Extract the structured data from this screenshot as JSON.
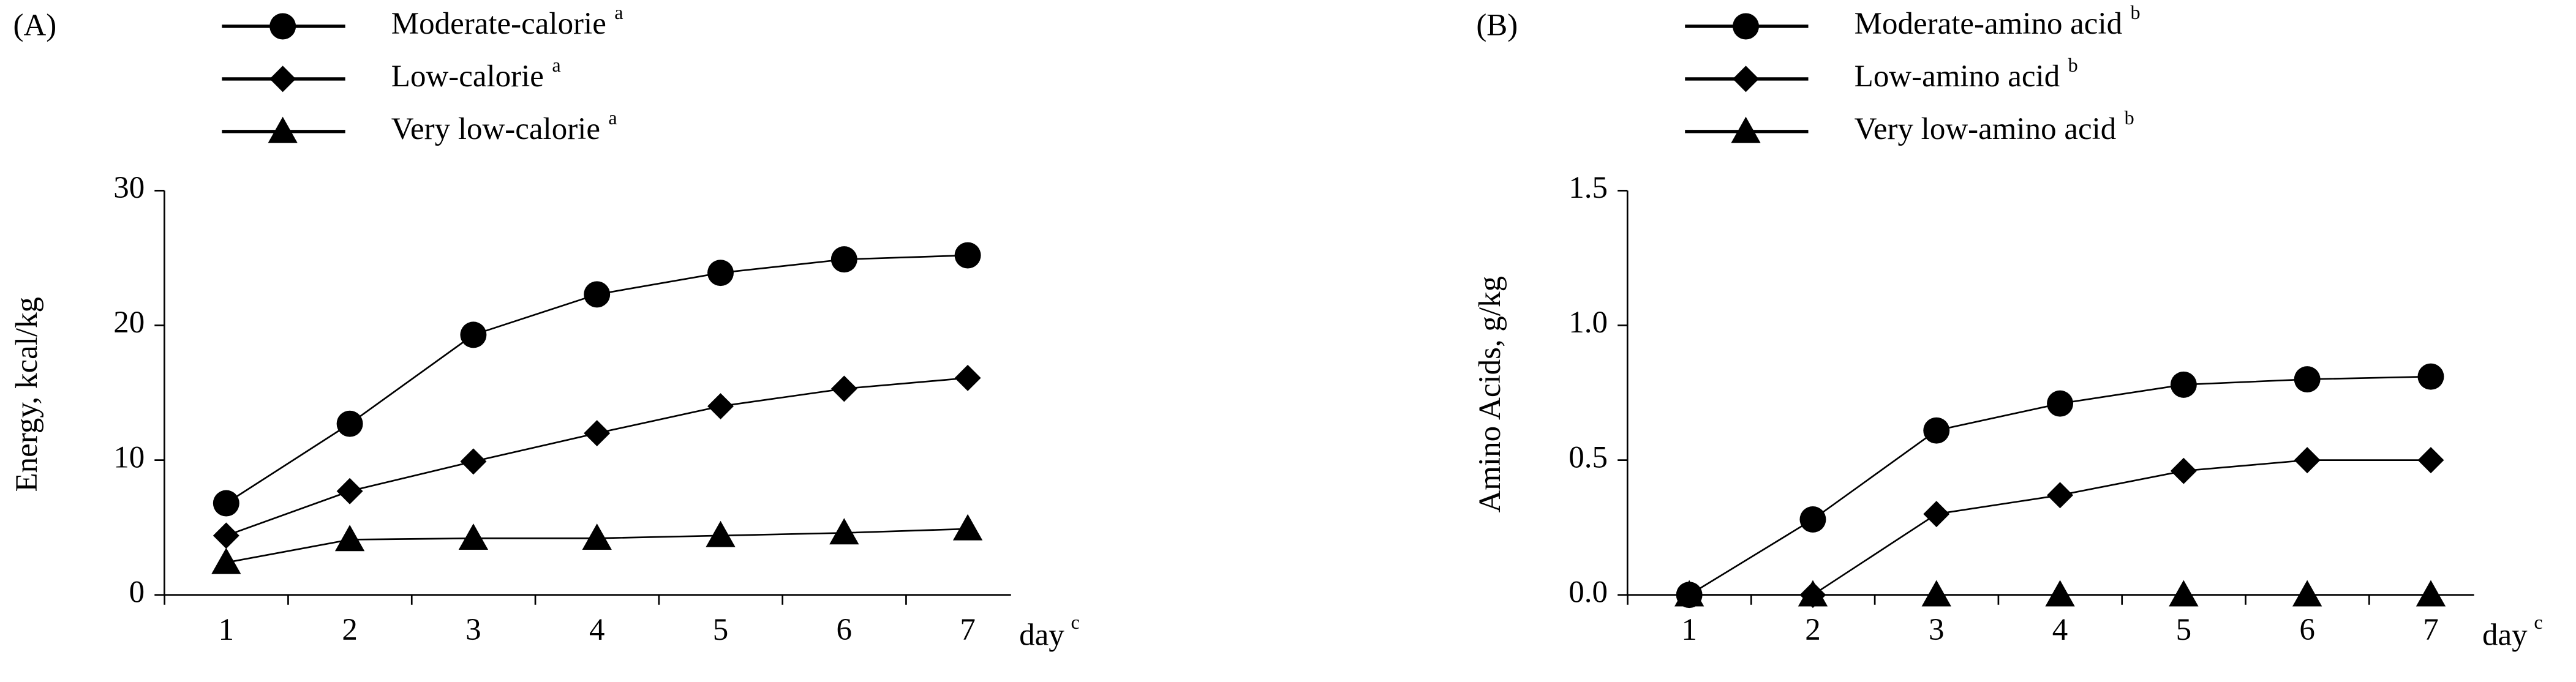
{
  "chart_data": [
    {
      "type": "line",
      "panel_label": "(A)",
      "ylabel": "Energy, kcal/kg",
      "xlabel": "day",
      "xlabel_note": "c",
      "x": [
        1,
        2,
        3,
        4,
        5,
        6,
        7
      ],
      "xlim": [
        0.5,
        7.35
      ],
      "ylim": [
        0,
        30
      ],
      "yticks": [
        0,
        10,
        20,
        30
      ],
      "series": [
        {
          "name": "Moderate-calorie",
          "note": "a",
          "color": "#000000",
          "marker": "circle",
          "values": [
            6.8,
            12.7,
            19.3,
            22.3,
            23.9,
            24.9,
            25.2
          ]
        },
        {
          "name": "Low-calorie",
          "note": "a",
          "color": "#000000",
          "marker": "diamond",
          "values": [
            4.4,
            7.7,
            9.9,
            12.0,
            14.0,
            15.3,
            16.1
          ]
        },
        {
          "name": "Very low-calorie",
          "note": "a",
          "color": "#000000",
          "marker": "triangle",
          "values": [
            2.4,
            4.1,
            4.2,
            4.2,
            4.4,
            4.6,
            4.9
          ]
        }
      ]
    },
    {
      "type": "line",
      "panel_label": "(B)",
      "ylabel": "Amino Acids, g/kg",
      "xlabel": "day",
      "xlabel_note": "c",
      "x": [
        1,
        2,
        3,
        4,
        5,
        6,
        7
      ],
      "xlim": [
        0.5,
        7.35
      ],
      "ylim": [
        0,
        1.5
      ],
      "yticks": [
        {
          "value": 0,
          "label": "0.0"
        },
        0.5,
        {
          "value": 1,
          "label": "1.0"
        },
        1.5
      ],
      "series": [
        {
          "name": "Moderate-amino acid",
          "note": "b",
          "color": "#000000",
          "marker": "circle",
          "values": [
            0,
            0.28,
            0.61,
            0.71,
            0.78,
            0.8,
            0.81
          ]
        },
        {
          "name": "Low-amino acid",
          "note": "b",
          "color": "#000000",
          "marker": "diamond",
          "values": [
            0,
            0,
            0.3,
            0.37,
            0.46,
            0.5,
            0.5
          ]
        },
        {
          "name": "Very low-amino acid",
          "note": "b",
          "color": "#000000",
          "marker": "triangle",
          "values": [
            0,
            0,
            0,
            0,
            0,
            0,
            0
          ]
        }
      ]
    }
  ]
}
